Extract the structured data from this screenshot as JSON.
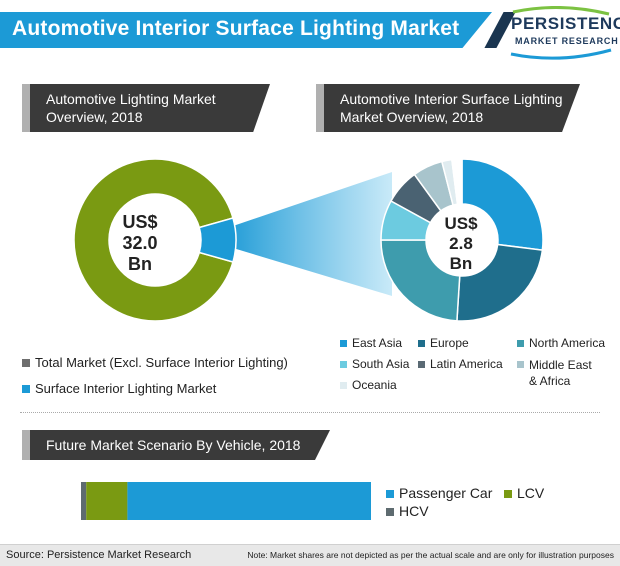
{
  "title": "Automotive Interior Surface Lighting Market",
  "logo": {
    "top": "PERSISTENCE",
    "bottom": "MARKET RESEARCH"
  },
  "colors": {
    "title_blue": "#1c9ad6",
    "dark_navy": "#1a3550",
    "olive_green": "#7a9a12",
    "light_blue": "#1c9ad6",
    "header_gray": "#3a3a3a"
  },
  "chart_data": [
    {
      "type": "pie",
      "donut": true,
      "title": "Automotive Lighting Market Overview, 2018",
      "center_label": [
        "US$",
        "32.0",
        "Bn"
      ],
      "slices": [
        {
          "name": "Total Market (Excl. Surface Interior Lighting)",
          "value": 91.25,
          "color": "#7a9a12"
        },
        {
          "name": "Surface Interior Lighting Market",
          "value": 8.75,
          "color": "#1c9ad6"
        }
      ],
      "legend": [
        {
          "label": "Total Market (Excl. Surface Interior Lighting)",
          "color": "#6e6e6e"
        },
        {
          "label": "Surface Interior Lighting Market",
          "color": "#1c9ad6"
        }
      ]
    },
    {
      "type": "pie",
      "donut": true,
      "title": "Automotive Interior Surface Lighting Market Overview, 2018",
      "center_label": [
        "US$",
        "2.8",
        "Bn"
      ],
      "slices": [
        {
          "name": "East Asia",
          "value": 27,
          "color": "#1c9ad6"
        },
        {
          "name": "Europe",
          "value": 24,
          "color": "#1f6e8c"
        },
        {
          "name": "North America",
          "value": 24,
          "color": "#3e9cad"
        },
        {
          "name": "South Asia",
          "value": 8,
          "color": "#6ccbe0"
        },
        {
          "name": "Latin America",
          "value": 7,
          "color": "#4a6272"
        },
        {
          "name": "Middle East & Africa",
          "value": 6,
          "color": "#a8c4cc"
        },
        {
          "name": "Oceania",
          "value": 2,
          "color": "#e0ecf0"
        },
        {
          "name": "",
          "value": 2,
          "color": "#ffffff"
        }
      ],
      "legend": [
        {
          "label": "East Asia",
          "color": "#1c9ad6"
        },
        {
          "label": "Europe",
          "color": "#1f6e8c"
        },
        {
          "label": "North America",
          "color": "#3e9cad"
        },
        {
          "label": "South Asia",
          "color": "#6ccbe0"
        },
        {
          "label": "Latin America",
          "color": "#5a6a74"
        },
        {
          "label": "Middle East",
          "label2": "& Africa",
          "color": "#a8c4cc"
        },
        {
          "label": "Oceania",
          "color": "#e0ecf0"
        }
      ]
    },
    {
      "type": "bar",
      "stacked": true,
      "orientation": "horizontal",
      "title": "Future Market Scenario By Vehicle, 2018",
      "series": [
        {
          "name": "HCV",
          "value": 1.8,
          "color": "#5e6b70"
        },
        {
          "name": "LCV",
          "value": 14.2,
          "color": "#7a9a12"
        },
        {
          "name": "Passenger Car",
          "value": 84,
          "color": "#1c9ad6"
        }
      ],
      "legend": [
        {
          "label": "Passenger Car",
          "color": "#1c9ad6"
        },
        {
          "label": "LCV",
          "color": "#7a9a12"
        },
        {
          "label": "HCV",
          "color": "#5e6b70"
        }
      ]
    }
  ],
  "footer": {
    "source": "Source: Persistence Market Research",
    "note": "Note: Market shares are not depicted as per the actual scale and are only for illustration purposes"
  }
}
